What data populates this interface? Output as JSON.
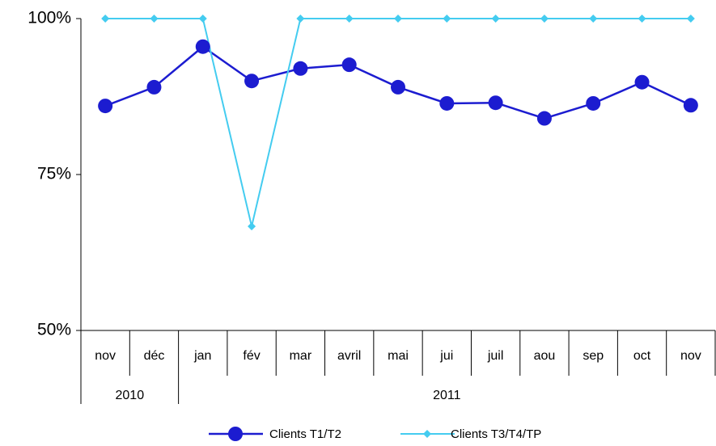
{
  "chart_data": {
    "type": "line",
    "categories": [
      "nov",
      "déc",
      "jan",
      "fév",
      "mar",
      "avril",
      "mai",
      "jui",
      "juil",
      "aou",
      "sep",
      "oct",
      "nov"
    ],
    "x_groups": [
      {
        "label": "2010",
        "count": 2
      },
      {
        "label": "2011",
        "count": 11
      }
    ],
    "series": [
      {
        "name": "Clients T1/T2",
        "color": "#1c1cd0",
        "marker": "circle",
        "values": [
          86,
          89,
          95.5,
          90,
          92,
          92.6,
          89,
          86.4,
          86.5,
          84,
          86.4,
          89.8,
          86.1
        ]
      },
      {
        "name": "Clients T3/T4/TP",
        "color": "#44ccf0",
        "marker": "diamond",
        "values": [
          100,
          100,
          100,
          66.7,
          100,
          100,
          100,
          100,
          100,
          100,
          100,
          100,
          100
        ]
      }
    ],
    "ylim": [
      50,
      100
    ],
    "yticks": [
      {
        "value": 50,
        "label": "50%"
      },
      {
        "value": 75,
        "label": "75%"
      },
      {
        "value": 100,
        "label": "100%"
      }
    ],
    "grid": false,
    "legend": "bottom"
  }
}
